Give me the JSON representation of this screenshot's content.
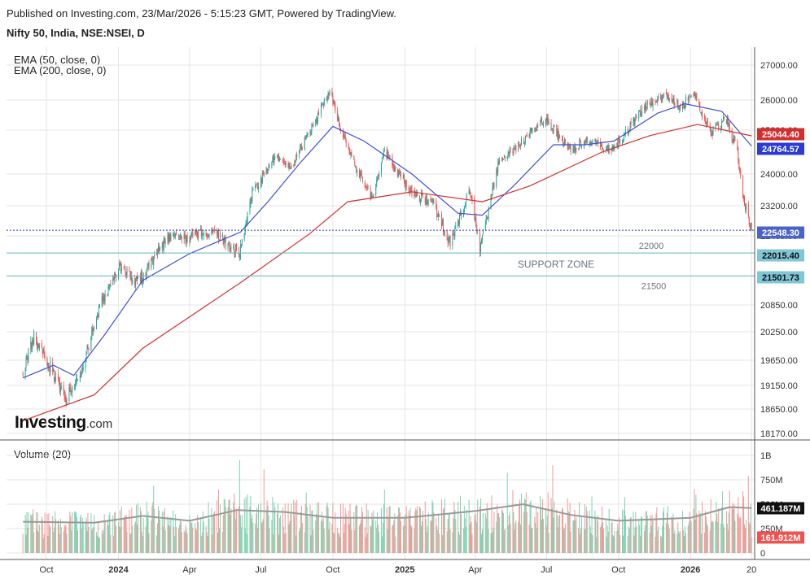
{
  "header": {
    "published": "Published on Investing.com, 23/Mar/2026 - 5:15:23 GMT, Powered by TradingView.",
    "symbol": "Nifty 50, India, NSE:NSEI, D"
  },
  "indicators": {
    "ema50": "EMA (50, close, 0)",
    "ema200": "EMA (200, close, 0)"
  },
  "volume_title": "Volume (20)",
  "logo": {
    "main": "Investing",
    "suffix": ".com"
  },
  "colors": {
    "up": "#26a69a",
    "down": "#ef5350",
    "ema50": "#3f51d8",
    "ema200": "#d32f2f",
    "support_line": "#5fb5c7",
    "last_price_line": "#2a3bb8",
    "volume_ma": "#999999",
    "grid": "#e6e6e6",
    "axis_text": "#333333"
  },
  "chart_data": [
    {
      "type": "candlestick",
      "title": "Nifty 50, India, NSE:NSEI, D",
      "x_ticks": [
        "Oct",
        "2024",
        "Apr",
        "Jul",
        "Oct",
        "2025",
        "Apr",
        "Jul",
        "Oct",
        "2026",
        "20"
      ],
      "y_ticks": [
        "27000.00",
        "26000.00",
        "25200.00",
        "24000.00",
        "23200.00",
        "22400.00",
        "20850.00",
        "20250.00",
        "19650.00",
        "19150.00",
        "18650.00",
        "18170.00"
      ],
      "ylim": [
        18170,
        27000
      ],
      "price_labels": [
        {
          "name": "EMA 200",
          "value": "25044.40",
          "color": "#d32f2f"
        },
        {
          "name": "EMA 50",
          "value": "24764.57",
          "color": "#2a3bd6"
        },
        {
          "name": "Last price",
          "value": "22548.30",
          "color": "#4a63c8"
        },
        {
          "name": "Support 22000",
          "value": "22015.40",
          "color": "#7fc6d6"
        },
        {
          "name": "Support 21500",
          "value": "21501.73",
          "color": "#7fc6d6"
        }
      ],
      "annotations": [
        {
          "text": "22000",
          "level": 22015.4
        },
        {
          "text": "SUPPORT ZONE",
          "level": 21760
        },
        {
          "text": "21500",
          "level": 21501.73
        }
      ],
      "anchor_series": {
        "name": "close (approx.)",
        "points": [
          [
            "2023-09-01",
            19400
          ],
          [
            "2023-09-15",
            20150
          ],
          [
            "2023-10-01",
            19650
          ],
          [
            "2023-10-26",
            18900
          ],
          [
            "2023-11-15",
            19450
          ],
          [
            "2023-12-10",
            20900
          ],
          [
            "2024-01-01",
            21700
          ],
          [
            "2024-01-25",
            21350
          ],
          [
            "2024-03-01",
            22300
          ],
          [
            "2024-04-01",
            22400
          ],
          [
            "2024-05-01",
            22550
          ],
          [
            "2024-06-04",
            22000
          ],
          [
            "2024-06-20",
            23500
          ],
          [
            "2024-07-20",
            24500
          ],
          [
            "2024-08-10",
            24250
          ],
          [
            "2024-09-27",
            26200
          ],
          [
            "2024-10-25",
            24400
          ],
          [
            "2024-11-20",
            23450
          ],
          [
            "2024-12-06",
            24600
          ],
          [
            "2025-01-10",
            23500
          ],
          [
            "2025-02-05",
            23300
          ],
          [
            "2025-02-28",
            22200
          ],
          [
            "2025-03-25",
            23600
          ],
          [
            "2025-04-07",
            22100
          ],
          [
            "2025-05-01",
            24300
          ],
          [
            "2025-06-01",
            24900
          ],
          [
            "2025-06-30",
            25500
          ],
          [
            "2025-08-01",
            24600
          ],
          [
            "2025-08-20",
            24900
          ],
          [
            "2025-09-25",
            24650
          ],
          [
            "2025-11-01",
            25800
          ],
          [
            "2025-12-01",
            26100
          ],
          [
            "2025-12-20",
            25800
          ],
          [
            "2026-01-05",
            26250
          ],
          [
            "2026-01-26",
            25100
          ],
          [
            "2026-02-15",
            25500
          ],
          [
            "2026-03-01",
            24700
          ],
          [
            "2026-03-10",
            23400
          ],
          [
            "2026-03-20",
            22548.3
          ]
        ]
      },
      "series": [
        {
          "name": "EMA (50, close, 0)",
          "last": 24764.57,
          "points": [
            [
              "2023-09-01",
              19300
            ],
            [
              "2023-10-10",
              19550
            ],
            [
              "2023-11-05",
              19350
            ],
            [
              "2023-12-15",
              20200
            ],
            [
              "2024-02-01",
              21400
            ],
            [
              "2024-04-01",
              22000
            ],
            [
              "2024-06-05",
              22500
            ],
            [
              "2024-07-10",
              23300
            ],
            [
              "2024-08-20",
              24300
            ],
            [
              "2024-10-01",
              25300
            ],
            [
              "2024-11-10",
              24900
            ],
            [
              "2025-01-10",
              24000
            ],
            [
              "2025-03-10",
              23000
            ],
            [
              "2025-04-10",
              22950
            ],
            [
              "2025-05-20",
              23700
            ],
            [
              "2025-07-10",
              24800
            ],
            [
              "2025-08-20",
              24800
            ],
            [
              "2025-09-25",
              24900
            ],
            [
              "2025-11-20",
              25650
            ],
            [
              "2025-12-25",
              25900
            ],
            [
              "2026-02-10",
              25700
            ],
            [
              "2026-03-20",
              24764.57
            ]
          ]
        },
        {
          "name": "EMA (200, close, 0)",
          "last": 25044.4,
          "points": [
            [
              "2023-09-01",
              18420
            ],
            [
              "2023-12-01",
              18950
            ],
            [
              "2024-02-01",
              19900
            ],
            [
              "2024-06-05",
              21350
            ],
            [
              "2024-09-01",
              22450
            ],
            [
              "2024-10-20",
              23300
            ],
            [
              "2025-01-10",
              23550
            ],
            [
              "2025-04-10",
              23300
            ],
            [
              "2025-06-10",
              23700
            ],
            [
              "2025-09-10",
              24600
            ],
            [
              "2025-11-10",
              25050
            ],
            [
              "2026-01-10",
              25350
            ],
            [
              "2026-03-20",
              25044.4
            ]
          ]
        }
      ]
    },
    {
      "type": "bar",
      "title": "Volume (20)",
      "y_ticks": [
        "1B",
        "750M",
        "500M",
        "250M",
        "0"
      ],
      "ylim": [
        0,
        1000
      ],
      "unit": "M",
      "price_labels": [
        {
          "name": "Volume MA",
          "value": "461.187M",
          "color": "#111111"
        },
        {
          "name": "Last volume",
          "value": "161.912M",
          "color": "#ef5350"
        }
      ],
      "notable_bars": [
        {
          "date": "2024-06-04",
          "value": 950
        },
        {
          "date": "2025-05-12",
          "value": 820
        },
        {
          "date": "2026-03-20",
          "value": 161.912
        }
      ],
      "series": [
        {
          "name": "Volume MA",
          "points": [
            [
              "2023-09-01",
              320
            ],
            [
              "2023-12-01",
              310
            ],
            [
              "2024-02-01",
              380
            ],
            [
              "2024-04-01",
              330
            ],
            [
              "2024-06-01",
              440
            ],
            [
              "2024-08-01",
              420
            ],
            [
              "2024-10-01",
              360
            ],
            [
              "2025-01-01",
              360
            ],
            [
              "2025-04-01",
              430
            ],
            [
              "2025-06-01",
              500
            ],
            [
              "2025-08-01",
              390
            ],
            [
              "2025-10-01",
              330
            ],
            [
              "2026-01-01",
              360
            ],
            [
              "2026-02-20",
              470
            ],
            [
              "2026-03-20",
              461.187
            ]
          ]
        }
      ]
    }
  ]
}
